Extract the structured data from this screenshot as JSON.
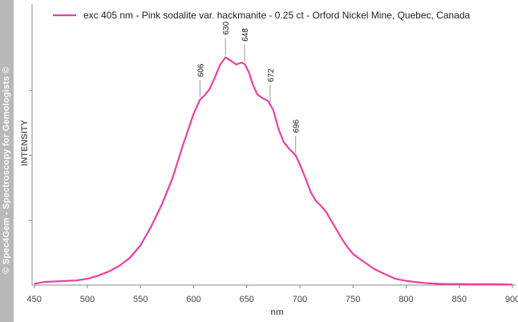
{
  "sidebar": {
    "text": "© Spec4Gem - Spectroscopy for Gemologists ©"
  },
  "chart_data": {
    "type": "line",
    "xlabel": "nm",
    "ylabel": "INTENSITY",
    "xlim": [
      448,
      903
    ],
    "ylim": [
      0,
      100
    ],
    "x_ticks": [
      450,
      500,
      550,
      600,
      650,
      700,
      750,
      800,
      850,
      900
    ],
    "y_ticks": [
      25,
      50,
      75
    ],
    "grid": false,
    "legend_position": "top",
    "series": [
      {
        "name": "exc 405 nm - Pink sodalite var. hackmanite - 0.25 ct - Orford Nickel Mine, Quebec, Canada",
        "color": "#ee3fa5",
        "x": [
          450,
          460,
          470,
          480,
          490,
          500,
          510,
          520,
          530,
          540,
          550,
          560,
          570,
          580,
          590,
          600,
          606,
          610,
          615,
          620,
          625,
          630,
          635,
          640,
          645,
          648,
          652,
          656,
          660,
          665,
          670,
          675,
          680,
          685,
          690,
          696,
          700,
          705,
          710,
          715,
          720,
          725,
          730,
          735,
          740,
          745,
          750,
          755,
          760,
          770,
          780,
          790,
          800,
          810,
          820,
          830,
          840,
          850,
          860,
          870,
          880,
          890,
          900
        ],
        "y": [
          0.5,
          1.2,
          1.4,
          1.6,
          1.8,
          2.4,
          3.6,
          5.2,
          7.4,
          10.5,
          15.3,
          22.5,
          31.0,
          41.0,
          54.0,
          66.0,
          71.5,
          73.0,
          75.5,
          80.0,
          85.0,
          87.8,
          86.5,
          85.0,
          85.8,
          85.2,
          82.0,
          77.0,
          73.5,
          72.0,
          71.0,
          67.5,
          60.0,
          55.0,
          52.5,
          50.0,
          46.5,
          41.5,
          36.0,
          32.5,
          30.5,
          28.0,
          24.5,
          21.0,
          17.5,
          14.5,
          12.0,
          10.5,
          9.0,
          6.2,
          4.2,
          2.4,
          1.6,
          1.1,
          0.7,
          0.5,
          0.4,
          0.4,
          0.3,
          0.3,
          0.3,
          0.3,
          0.2
        ]
      }
    ],
    "annotations": [
      {
        "label": "606",
        "x": 606
      },
      {
        "label": "630",
        "x": 630
      },
      {
        "label": "648",
        "x": 648
      },
      {
        "label": "672",
        "x": 672
      },
      {
        "label": "696",
        "x": 696
      }
    ]
  }
}
